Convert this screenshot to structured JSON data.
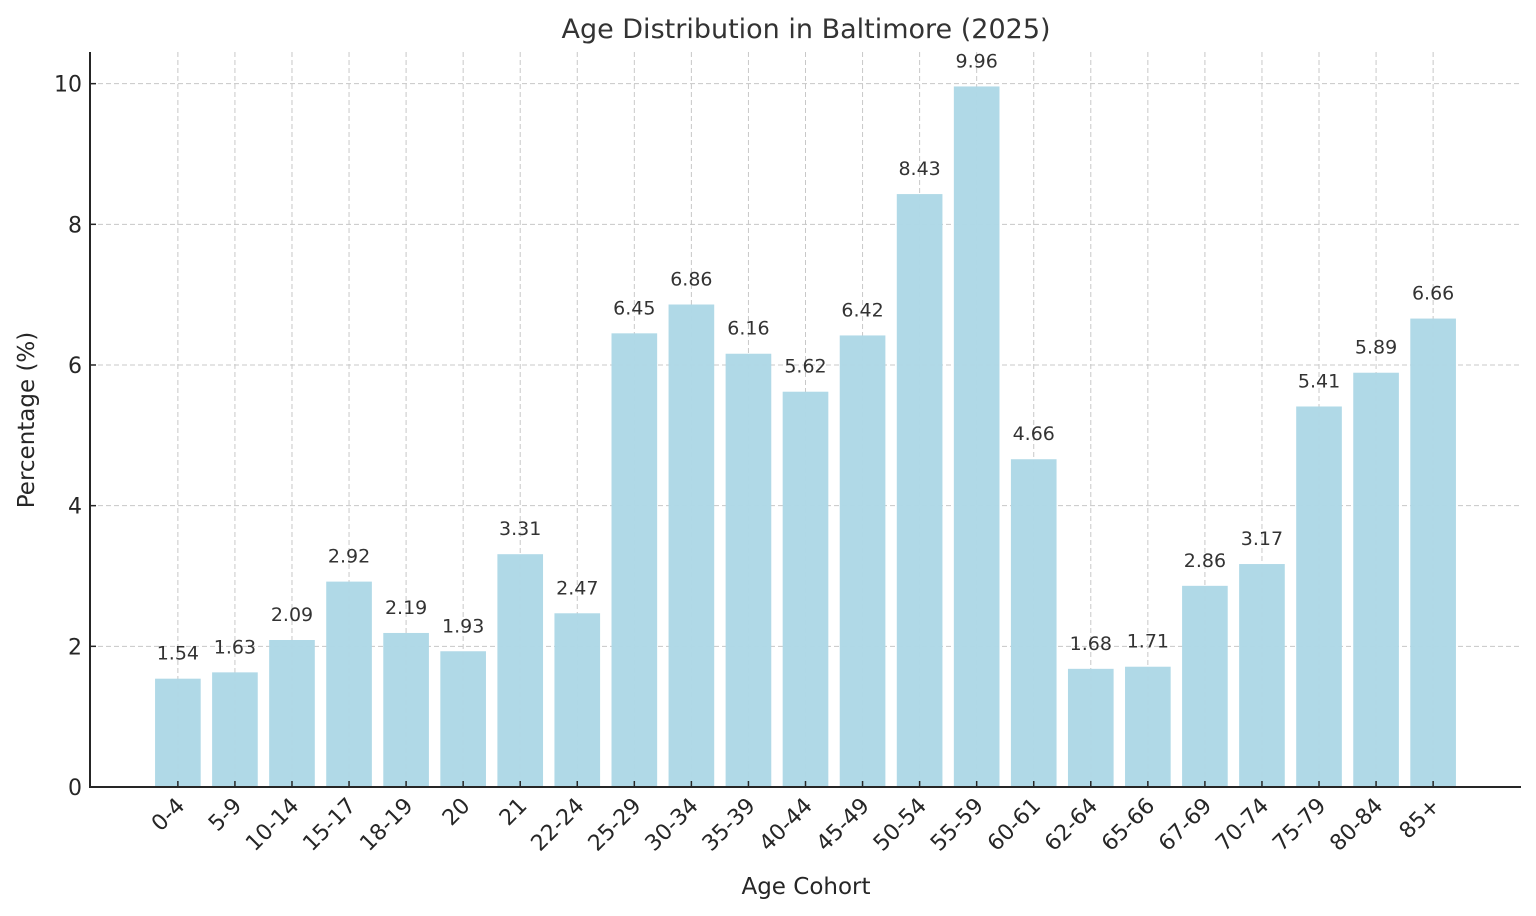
{
  "chart_data": {
    "type": "bar",
    "title": "Age Distribution in Baltimore (2025)",
    "xlabel": "Age Cohort",
    "ylabel": "Percentage (%)",
    "categories": [
      "0-4",
      "5-9",
      "10-14",
      "15-17",
      "18-19",
      "20",
      "21",
      "22-24",
      "25-29",
      "30-34",
      "35-39",
      "40-44",
      "45-49",
      "50-54",
      "55-59",
      "60-61",
      "62-64",
      "65-66",
      "67-69",
      "70-74",
      "75-79",
      "80-84",
      "85+"
    ],
    "values": [
      1.54,
      1.63,
      2.09,
      2.92,
      2.19,
      1.93,
      3.31,
      2.47,
      6.45,
      6.86,
      6.16,
      5.62,
      6.42,
      8.43,
      9.96,
      4.66,
      1.68,
      1.71,
      2.86,
      3.17,
      5.41,
      5.89,
      6.66
    ],
    "data_labels": [
      "1.54",
      "1.63",
      "2.09",
      "2.92",
      "2.19",
      "1.93",
      "3.31",
      "2.47",
      "6.45",
      "6.86",
      "6.16",
      "5.62",
      "6.42",
      "8.43",
      "9.96",
      "4.66",
      "1.68",
      "1.71",
      "2.86",
      "3.17",
      "5.41",
      "5.89",
      "6.66"
    ],
    "yticks": [
      0,
      2,
      4,
      6,
      8,
      10
    ],
    "ylim": [
      0,
      10.45
    ],
    "grid": true,
    "bar_color": "#add8e6"
  }
}
